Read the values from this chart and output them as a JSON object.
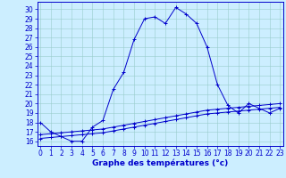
{
  "xlabel": "Graphe des températures (°c)",
  "x_ticks": [
    0,
    1,
    2,
    3,
    4,
    5,
    6,
    7,
    8,
    9,
    10,
    11,
    12,
    13,
    14,
    15,
    16,
    17,
    18,
    19,
    20,
    21,
    22,
    23
  ],
  "y_ticks": [
    16,
    17,
    18,
    19,
    20,
    21,
    22,
    23,
    24,
    25,
    26,
    27,
    28,
    29,
    30
  ],
  "ylim": [
    15.5,
    30.8
  ],
  "xlim": [
    -0.3,
    23.3
  ],
  "line1_x": [
    0,
    1,
    2,
    3,
    4,
    5,
    6,
    7,
    8,
    9,
    10,
    11,
    12,
    13,
    14,
    15,
    16,
    17,
    18,
    19,
    20,
    21,
    22,
    23
  ],
  "line1_y": [
    18.0,
    17.0,
    16.5,
    16.0,
    16.0,
    17.5,
    18.2,
    21.5,
    23.3,
    26.8,
    29.0,
    29.2,
    28.5,
    30.2,
    29.5,
    28.5,
    26.0,
    22.0,
    19.8,
    19.0,
    20.0,
    19.5,
    19.0,
    19.5
  ],
  "line2_x": [
    0,
    1,
    2,
    3,
    4,
    5,
    6,
    7,
    8,
    9,
    10,
    11,
    12,
    13,
    14,
    15,
    16,
    17,
    18,
    19,
    20,
    21,
    22,
    23
  ],
  "line2_y": [
    16.3,
    16.4,
    16.5,
    16.6,
    16.7,
    16.8,
    16.9,
    17.1,
    17.3,
    17.5,
    17.7,
    17.9,
    18.1,
    18.3,
    18.5,
    18.7,
    18.9,
    19.0,
    19.1,
    19.2,
    19.3,
    19.4,
    19.5,
    19.6
  ],
  "line3_x": [
    0,
    1,
    2,
    3,
    4,
    5,
    6,
    7,
    8,
    9,
    10,
    11,
    12,
    13,
    14,
    15,
    16,
    17,
    18,
    19,
    20,
    21,
    22,
    23
  ],
  "line3_y": [
    16.7,
    16.8,
    16.9,
    17.0,
    17.1,
    17.2,
    17.3,
    17.5,
    17.7,
    17.9,
    18.1,
    18.3,
    18.5,
    18.7,
    18.9,
    19.1,
    19.3,
    19.4,
    19.5,
    19.6,
    19.7,
    19.8,
    19.9,
    20.0
  ],
  "line_color": "#0000cc",
  "bg_color": "#cceeff",
  "grid_color": "#99cccc",
  "tick_label_fontsize": 5.5,
  "xlabel_fontsize": 6.5
}
